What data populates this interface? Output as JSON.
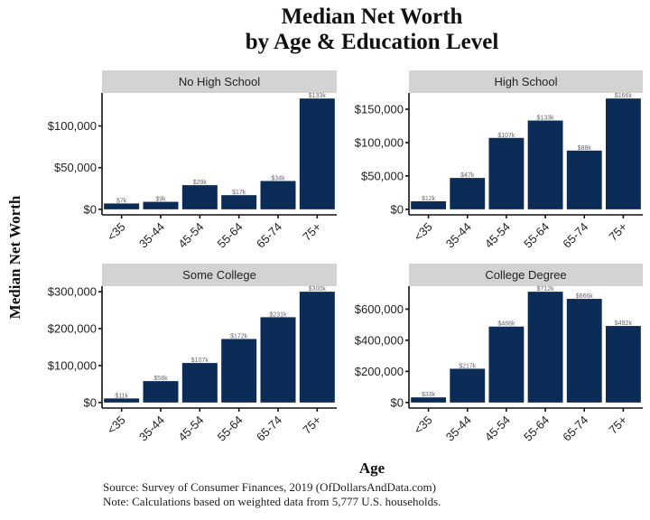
{
  "chart_data": {
    "type": "bar",
    "title": "Median Net Worth",
    "subtitle": "by Age & Education Level",
    "xlabel": "Age",
    "ylabel": "Median Net Worth",
    "source": "Source:  Survey of Consumer Finances, 2019 (OfDollarsAndData.com)",
    "note": "Note: Calculations based on weighted data from 5,777 U.S. households.",
    "categories": [
      "<35",
      "35-44",
      "45-54",
      "55-64",
      "65-74",
      "75+"
    ],
    "bar_color": "#0b2c57",
    "grid": false,
    "facets": [
      {
        "name": "No High School",
        "values": [
          7000,
          9000,
          29000,
          17000,
          34000,
          133000
        ],
        "labels": [
          "$7k",
          "$9k",
          "$29k",
          "$17k",
          "$34k",
          "$133k"
        ],
        "yticks": [
          0,
          50000,
          100000
        ],
        "ytick_labels": [
          "$0",
          "$50,000",
          "$100,000"
        ]
      },
      {
        "name": "High School",
        "values": [
          12000,
          47000,
          107000,
          133000,
          88000,
          166000
        ],
        "labels": [
          "$12k",
          "$47k",
          "$107k",
          "$133k",
          "$88k",
          "$166k"
        ],
        "yticks": [
          0,
          50000,
          100000,
          150000
        ],
        "ytick_labels": [
          "$0",
          "$50,000",
          "$100,000",
          "$150,000"
        ]
      },
      {
        "name": "Some College",
        "values": [
          11000,
          58000,
          107000,
          172000,
          231000,
          300000
        ],
        "labels": [
          "$11k",
          "$58k",
          "$107k",
          "$172k",
          "$231k",
          "$300k"
        ],
        "yticks": [
          0,
          100000,
          200000,
          300000
        ],
        "ytick_labels": [
          "$0",
          "$100,000",
          "$200,000",
          "$300,000"
        ]
      },
      {
        "name": "College Degree",
        "values": [
          33000,
          217000,
          488000,
          712000,
          666000,
          492000
        ],
        "labels": [
          "$33k",
          "$217k",
          "$488k",
          "$712k",
          "$666k",
          "$492k"
        ],
        "yticks": [
          0,
          200000,
          400000,
          600000
        ],
        "ytick_labels": [
          "$0",
          "$200,000",
          "$400,000",
          "$600,000"
        ]
      }
    ]
  }
}
